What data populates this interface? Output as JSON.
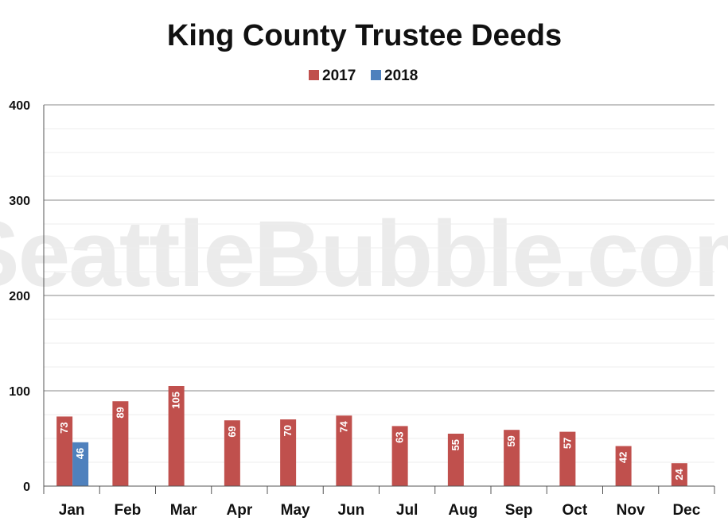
{
  "watermark": "SeattleBubble.com",
  "chart_data": {
    "type": "bar",
    "title": "King County Trustee Deeds",
    "xlabel": "",
    "ylabel": "",
    "ylim": [
      0,
      400
    ],
    "yticks": [
      0,
      100,
      200,
      300,
      400
    ],
    "grid": true,
    "legend_position": "top-center",
    "categories": [
      "Jan",
      "Feb",
      "Mar",
      "Apr",
      "May",
      "Jun",
      "Jul",
      "Aug",
      "Sep",
      "Oct",
      "Nov",
      "Dec"
    ],
    "series": [
      {
        "name": "2017",
        "color": "#c0504d",
        "values": [
          73,
          89,
          105,
          69,
          70,
          74,
          63,
          55,
          59,
          57,
          42,
          24
        ]
      },
      {
        "name": "2018",
        "color": "#4f81bd",
        "values": [
          46,
          null,
          null,
          null,
          null,
          null,
          null,
          null,
          null,
          null,
          null,
          null
        ]
      }
    ]
  }
}
